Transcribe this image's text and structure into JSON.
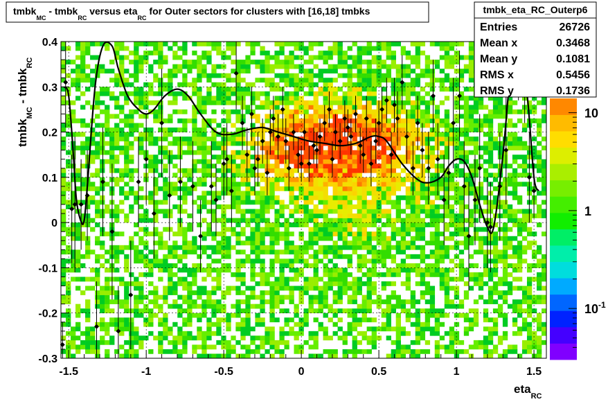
{
  "chart_data": {
    "type": "heatmap",
    "title": {
      "pre": "tmbk",
      "sub1": "MC",
      "mid": " - tmbk",
      "sub2": "RC",
      "mid2": " versus eta",
      "sub3": "RC",
      "post": " for Outer sectors for clusters with [16,18] tmbks"
    },
    "xlabel": {
      "main": "eta",
      "sub": "RC"
    },
    "ylabel": {
      "pre": "tmbk",
      "sub1": "MC",
      "mid": " - tmbk",
      "sub2": "RC"
    },
    "xlim": [
      -1.55,
      1.58
    ],
    "ylim": [
      -0.3,
      0.4
    ],
    "x_ticks": [
      {
        "v": -1.5,
        "label": "-1.5"
      },
      {
        "v": -1,
        "label": "-1"
      },
      {
        "v": -0.5,
        "label": "-0.5"
      },
      {
        "v": 0,
        "label": "0"
      },
      {
        "v": 0.5,
        "label": "0.5"
      },
      {
        "v": 1,
        "label": "1"
      },
      {
        "v": 1.5,
        "label": "1.5"
      }
    ],
    "y_ticks": [
      {
        "v": -0.3,
        "label": "-0.3"
      },
      {
        "v": -0.2,
        "label": "-0.2"
      },
      {
        "v": -0.1,
        "label": "-0.1"
      },
      {
        "v": 0,
        "label": "0"
      },
      {
        "v": 0.1,
        "label": "0.1"
      },
      {
        "v": 0.2,
        "label": "0.2"
      },
      {
        "v": 0.3,
        "label": "0.3"
      },
      {
        "v": 0.4,
        "label": "0.4"
      }
    ],
    "grid": true,
    "log_z": true,
    "z_ticks": [
      {
        "v": 10,
        "label": "10"
      },
      {
        "v": 1,
        "label": "1"
      },
      {
        "v": 0.1,
        "label": "10",
        "exp": "-1"
      }
    ],
    "z_range": [
      0.03,
      14
    ],
    "stats_box": {
      "name": "tmbk_eta_RC_Outerp6",
      "rows": [
        {
          "label": "Entries",
          "value": "26726"
        },
        {
          "label": "Mean x",
          "value": "0.3468"
        },
        {
          "label": "Mean y",
          "value": "0.1081"
        },
        {
          "label": "RMS x",
          "value": "0.5456"
        },
        {
          "label": "RMS y",
          "value": "0.1736"
        }
      ]
    },
    "profile_curve": {
      "x": [
        -1.53,
        -1.5,
        -1.47,
        -1.45,
        -1.42,
        -1.4,
        -1.38,
        -1.33,
        -1.28,
        -1.22,
        -1.18,
        -1.12,
        -1.05,
        -1.0,
        -0.95,
        -0.88,
        -0.8,
        -0.73,
        -0.65,
        -0.55,
        -0.45,
        -0.35,
        -0.25,
        -0.15,
        -0.05,
        0.05,
        0.15,
        0.25,
        0.35,
        0.45,
        0.5,
        0.55,
        0.65,
        0.75,
        0.82,
        0.9,
        0.95,
        1.0,
        1.05,
        1.1,
        1.15,
        1.2,
        1.24,
        1.3,
        1.35,
        1.38,
        1.42,
        1.46,
        1.5,
        1.53
      ],
      "y": [
        0.3,
        0.28,
        0.15,
        0.05,
        0.002,
        0.005,
        0.08,
        0.3,
        0.39,
        0.39,
        0.34,
        0.28,
        0.25,
        0.24,
        0.25,
        0.28,
        0.295,
        0.28,
        0.24,
        0.2,
        0.195,
        0.205,
        0.21,
        0.2,
        0.19,
        0.18,
        0.175,
        0.17,
        0.175,
        0.19,
        0.19,
        0.18,
        0.13,
        0.095,
        0.088,
        0.1,
        0.125,
        0.14,
        0.135,
        0.1,
        0.04,
        -0.01,
        -0.01,
        0.15,
        0.34,
        0.38,
        0.37,
        0.27,
        0.1,
        0.07
      ]
    },
    "profile_points": [
      {
        "x": -1.54,
        "y": -0.27,
        "e": 0.05
      },
      {
        "x": -1.52,
        "y": 0.31,
        "e": 0.1
      },
      {
        "x": -1.48,
        "y": 0.03,
        "e": 0.12
      },
      {
        "x": -1.46,
        "y": 0.04,
        "e": 0.15
      },
      {
        "x": -1.42,
        "y": 0.04,
        "e": 0.1
      },
      {
        "x": -1.38,
        "y": 0.06,
        "e": 0.1
      },
      {
        "x": -1.32,
        "y": -0.23,
        "e": 0.1
      },
      {
        "x": -1.28,
        "y": 0.09,
        "e": 0.12
      },
      {
        "x": -1.22,
        "y": -0.02,
        "e": 0.15
      },
      {
        "x": -1.18,
        "y": -0.24,
        "e": 0.1
      },
      {
        "x": -1.1,
        "y": -0.16,
        "e": 0.12
      },
      {
        "x": -1.05,
        "y": 0.09,
        "e": 0.1
      },
      {
        "x": -1.0,
        "y": 0.14,
        "e": 0.1
      },
      {
        "x": -0.95,
        "y": 0.02,
        "e": 0.1
      },
      {
        "x": -0.9,
        "y": 0.22,
        "e": 0.12
      },
      {
        "x": -0.85,
        "y": 0.06,
        "e": 0.1
      },
      {
        "x": -0.78,
        "y": 0.09,
        "e": 0.1
      },
      {
        "x": -0.7,
        "y": 0.08,
        "e": 0.1
      },
      {
        "x": -0.65,
        "y": -0.03,
        "e": 0.08
      },
      {
        "x": -0.58,
        "y": 0.08,
        "e": 0.1
      },
      {
        "x": -0.55,
        "y": 0.05,
        "e": 0.08
      },
      {
        "x": -0.5,
        "y": 0.13,
        "e": 0.08
      },
      {
        "x": -0.48,
        "y": 0.14,
        "e": 0.08
      },
      {
        "x": -0.45,
        "y": 0.07,
        "e": 0.08
      },
      {
        "x": -0.42,
        "y": 0.33,
        "e": 0.08
      },
      {
        "x": -0.38,
        "y": 0.22,
        "e": 0.06
      },
      {
        "x": -0.35,
        "y": 0.15,
        "e": 0.06
      },
      {
        "x": -0.32,
        "y": 0.24,
        "e": 0.06
      },
      {
        "x": -0.3,
        "y": 0.12,
        "e": 0.06
      },
      {
        "x": -0.28,
        "y": 0.14,
        "e": 0.06
      },
      {
        "x": -0.25,
        "y": 0.18,
        "e": 0.05
      },
      {
        "x": -0.22,
        "y": 0.11,
        "e": 0.05
      },
      {
        "x": -0.2,
        "y": 0.2,
        "e": 0.05
      },
      {
        "x": -0.18,
        "y": 0.23,
        "e": 0.05
      },
      {
        "x": -0.15,
        "y": 0.19,
        "e": 0.05
      },
      {
        "x": -0.12,
        "y": 0.25,
        "e": 0.05
      },
      {
        "x": -0.1,
        "y": 0.18,
        "e": 0.05
      },
      {
        "x": -0.08,
        "y": 0.12,
        "e": 0.05
      },
      {
        "x": -0.05,
        "y": 0.2,
        "e": 0.04
      },
      {
        "x": -0.02,
        "y": 0.15,
        "e": 0.04
      },
      {
        "x": 0.0,
        "y": 0.13,
        "e": 0.04
      },
      {
        "x": 0.02,
        "y": 0.2,
        "e": 0.04
      },
      {
        "x": 0.05,
        "y": 0.13,
        "e": 0.04
      },
      {
        "x": 0.08,
        "y": 0.17,
        "e": 0.04
      },
      {
        "x": 0.1,
        "y": 0.16,
        "e": 0.04
      },
      {
        "x": 0.12,
        "y": 0.19,
        "e": 0.04
      },
      {
        "x": 0.15,
        "y": 0.22,
        "e": 0.04
      },
      {
        "x": 0.18,
        "y": 0.25,
        "e": 0.04
      },
      {
        "x": 0.2,
        "y": 0.14,
        "e": 0.04
      },
      {
        "x": 0.22,
        "y": 0.2,
        "e": 0.04
      },
      {
        "x": 0.25,
        "y": 0.18,
        "e": 0.04
      },
      {
        "x": 0.28,
        "y": 0.23,
        "e": 0.04
      },
      {
        "x": 0.3,
        "y": 0.21,
        "e": 0.04
      },
      {
        "x": 0.32,
        "y": 0.19,
        "e": 0.04
      },
      {
        "x": 0.35,
        "y": 0.24,
        "e": 0.04
      },
      {
        "x": 0.38,
        "y": 0.17,
        "e": 0.04
      },
      {
        "x": 0.4,
        "y": 0.15,
        "e": 0.04
      },
      {
        "x": 0.42,
        "y": 0.23,
        "e": 0.05
      },
      {
        "x": 0.45,
        "y": 0.13,
        "e": 0.05
      },
      {
        "x": 0.48,
        "y": 0.18,
        "e": 0.05
      },
      {
        "x": 0.5,
        "y": 0.22,
        "e": 0.05
      },
      {
        "x": 0.52,
        "y": 0.25,
        "e": 0.05
      },
      {
        "x": 0.55,
        "y": 0.27,
        "e": 0.05
      },
      {
        "x": 0.58,
        "y": 0.15,
        "e": 0.05
      },
      {
        "x": 0.6,
        "y": 0.26,
        "e": 0.06
      },
      {
        "x": 0.62,
        "y": 0.23,
        "e": 0.06
      },
      {
        "x": 0.65,
        "y": 0.31,
        "e": 0.06
      },
      {
        "x": 0.68,
        "y": 0.19,
        "e": 0.06
      },
      {
        "x": 0.72,
        "y": 0.12,
        "e": 0.06
      },
      {
        "x": 0.75,
        "y": 0.22,
        "e": 0.06
      },
      {
        "x": 0.78,
        "y": 0.16,
        "e": 0.06
      },
      {
        "x": 0.82,
        "y": 0.12,
        "e": 0.08
      },
      {
        "x": 0.85,
        "y": 0.28,
        "e": 0.08
      },
      {
        "x": 0.88,
        "y": 0.14,
        "e": 0.08
      },
      {
        "x": 0.92,
        "y": 0.05,
        "e": 0.1
      },
      {
        "x": 0.95,
        "y": 0.11,
        "e": 0.08
      },
      {
        "x": 0.98,
        "y": 0.22,
        "e": 0.1
      },
      {
        "x": 1.02,
        "y": 0.28,
        "e": 0.1
      },
      {
        "x": 1.05,
        "y": 0.08,
        "e": 0.1
      },
      {
        "x": 1.08,
        "y": -0.03,
        "e": 0.12
      },
      {
        "x": 1.12,
        "y": 0.05,
        "e": 0.1
      },
      {
        "x": 1.15,
        "y": 0.12,
        "e": 0.12
      },
      {
        "x": 1.2,
        "y": 0.0,
        "e": 0.1
      },
      {
        "x": 1.22,
        "y": -0.01,
        "e": 0.1
      },
      {
        "x": 1.28,
        "y": 0.08,
        "e": 0.12
      },
      {
        "x": 1.32,
        "y": 0.16,
        "e": 0.12
      },
      {
        "x": 1.36,
        "y": 0.38,
        "e": 0.1
      },
      {
        "x": 1.4,
        "y": 0.37,
        "e": 0.1
      },
      {
        "x": 1.44,
        "y": 0.3,
        "e": 0.08
      },
      {
        "x": 1.47,
        "y": 0.1,
        "e": 0.1
      },
      {
        "x": 1.5,
        "y": 0.07,
        "e": 0.06
      }
    ]
  }
}
